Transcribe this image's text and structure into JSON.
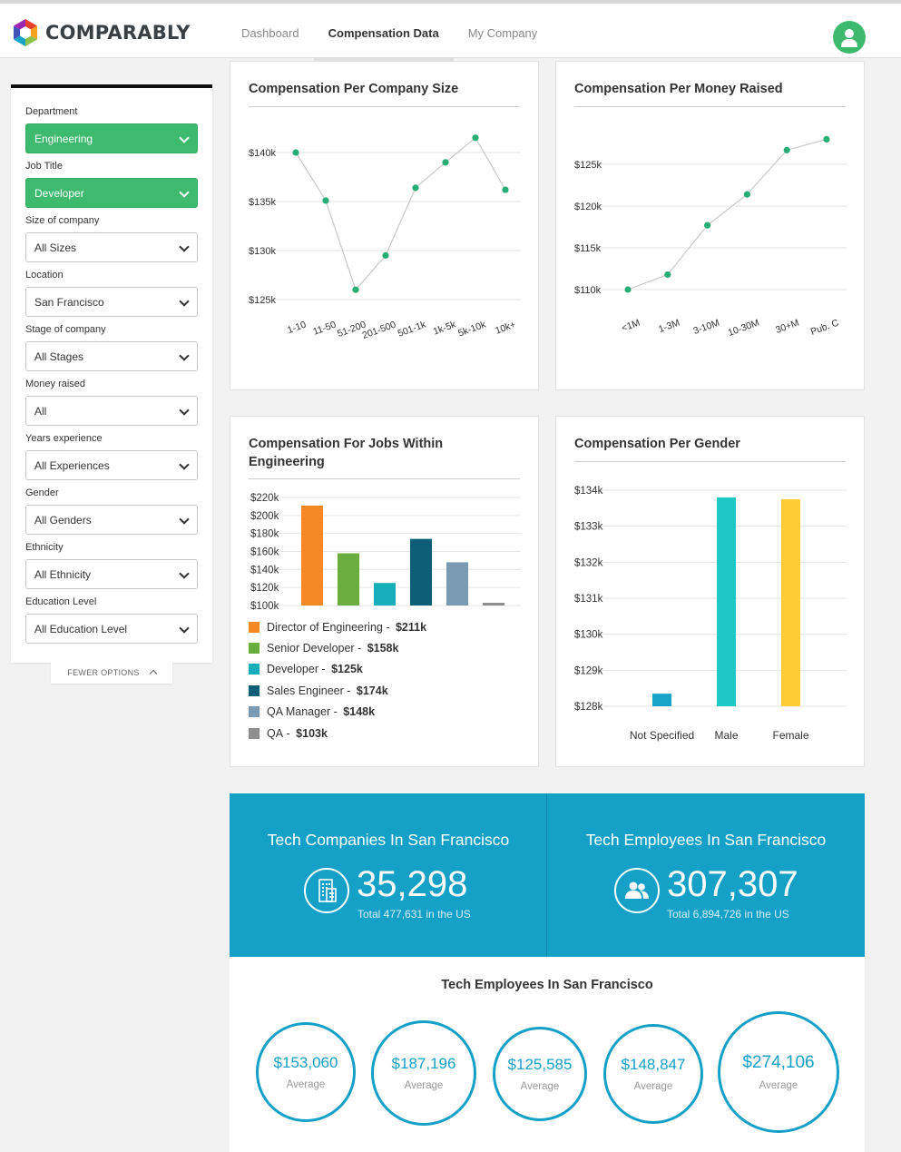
{
  "app": {
    "logo_text": "COMPARABLY",
    "nav": [
      "Dashboard",
      "Compensation Data",
      "My Company"
    ],
    "active_nav": "Compensation Data",
    "avatar_icon": "user-icon"
  },
  "colors": {
    "green": "#3dba6e",
    "teal_banner": "#15a0c7",
    "chart_point": "#27ae76"
  },
  "filters": [
    {
      "label": "Department",
      "value": "Engineering",
      "highlight": true
    },
    {
      "label": "Job Title",
      "value": "Developer",
      "highlight": true
    },
    {
      "label": "Size of company",
      "value": "All Sizes",
      "highlight": false
    },
    {
      "label": "Location",
      "value": "San Francisco",
      "highlight": false
    },
    {
      "label": "Stage of company",
      "value": "All Stages",
      "highlight": false
    },
    {
      "label": "Money raised",
      "value": "All",
      "highlight": false
    },
    {
      "label": "Years experience",
      "value": "All Experiences",
      "highlight": false
    },
    {
      "label": "Gender",
      "value": "All Genders",
      "highlight": false
    },
    {
      "label": "Ethnicity",
      "value": "All Ethnicity",
      "highlight": false
    },
    {
      "label": "Education Level",
      "value": "All Education Level",
      "highlight": false
    }
  ],
  "fewer_options": "FEWER OPTIONS",
  "chart_data": [
    {
      "type": "line",
      "title": "Compensation Per Company Size",
      "categories": [
        "1-10",
        "11-50",
        "51-200",
        "201-500",
        "501-1k",
        "1k-5k",
        "5k-10k",
        "10k+"
      ],
      "values": [
        140000,
        135100,
        126000,
        129500,
        136400,
        139000,
        141500,
        136200
      ],
      "yticks": [
        "$140k",
        "$135k",
        "$130k",
        "$125k"
      ],
      "ylim": [
        125000,
        140000
      ],
      "grid": true
    },
    {
      "type": "line",
      "title": "Compensation Per Money Raised",
      "categories": [
        "<1M",
        "1-3M",
        "3-10M",
        "10-30M",
        "30+M",
        "Pub. C"
      ],
      "values": [
        110000,
        111800,
        117700,
        121400,
        126700,
        128000
      ],
      "yticks": [
        "$125k",
        "$120k",
        "$115k",
        "$110k"
      ],
      "ylim": [
        110000,
        125000
      ],
      "grid": true
    },
    {
      "type": "bar",
      "title": "Compensation For Jobs Within Engineering",
      "categories": [
        "Director of Engineering",
        "Senior Developer",
        "Developer",
        "Sales Engineer",
        "QA Manager",
        "QA"
      ],
      "values": [
        211000,
        158000,
        125000,
        174000,
        148000,
        103000
      ],
      "value_labels": [
        "$211k",
        "$158k",
        "$125k",
        "$174k",
        "$148k",
        "$103k"
      ],
      "colors": [
        "#f58a24",
        "#6aae3f",
        "#17aebc",
        "#0f5e78",
        "#7b9bb5",
        "#8e8e8e"
      ],
      "yticks": [
        "$220k",
        "$200k",
        "$180k",
        "$160k",
        "$140k",
        "$120k",
        "$100k"
      ],
      "ylim": [
        100000,
        220000
      ],
      "legend_separator": " - ",
      "grid": true
    },
    {
      "type": "bar",
      "title": "Compensation Per Gender",
      "categories": [
        "Not Specified",
        "Male",
        "Female"
      ],
      "values": [
        128350,
        133800,
        133750
      ],
      "colors": [
        "#17a3c8",
        "#1cc9c4",
        "#ffcc33"
      ],
      "yticks": [
        "$134k",
        "$133k",
        "$132k",
        "$131k",
        "$130k",
        "$129k",
        "$128k"
      ],
      "ylim": [
        128000,
        134000
      ],
      "grid": true
    }
  ],
  "stats": [
    {
      "title": "Tech Companies In San Francisco",
      "value": "35,298",
      "sub": "Total 477,631 in the US",
      "icon": "building-icon"
    },
    {
      "title": "Tech Employees In San Francisco",
      "value": "307,307",
      "sub": "Total 6,894,726 in the US",
      "icon": "people-icon"
    }
  ],
  "averages": {
    "title": "Tech Employees In San Francisco",
    "items": [
      {
        "value": "$153,060",
        "label": "Average"
      },
      {
        "value": "$187,196",
        "label": "Average"
      },
      {
        "value": "$125,585",
        "label": "Average"
      },
      {
        "value": "$148,847",
        "label": "Average"
      },
      {
        "value": "$274,106",
        "label": "Average"
      }
    ]
  }
}
